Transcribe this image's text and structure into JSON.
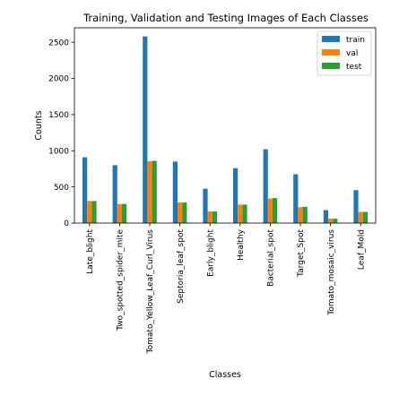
{
  "chart_data": {
    "type": "bar",
    "title": "Training, Validation and Testing Images of Each Classes",
    "xlabel": "Classes",
    "ylabel": "Counts",
    "ylim": [
      0,
      2700
    ],
    "yticks": [
      0,
      500,
      1000,
      1500,
      2000,
      2500
    ],
    "grid": false,
    "legend_position": "top-right",
    "categories": [
      "Late_blight",
      "Two_spotted_spider_mite",
      "Tomato_Yellow_Leaf_Curl_Virus",
      "Septoria_leaf_spot",
      "Early_blight",
      "Healthy",
      "Bacterial_spot",
      "Target_Spot",
      "Tomato_mosaic_virus",
      "Leaf_Mold"
    ],
    "series": [
      {
        "name": "train",
        "color": "#1f77b4",
        "values": [
          910,
          800,
          2580,
          850,
          475,
          760,
          1020,
          675,
          180,
          455
        ]
      },
      {
        "name": "val",
        "color": "#ff7f0e",
        "values": [
          305,
          265,
          855,
          285,
          160,
          255,
          340,
          220,
          60,
          155
        ]
      },
      {
        "name": "test",
        "color": "#2ca02c",
        "values": [
          305,
          265,
          860,
          285,
          160,
          255,
          345,
          225,
          60,
          155
        ]
      }
    ]
  }
}
